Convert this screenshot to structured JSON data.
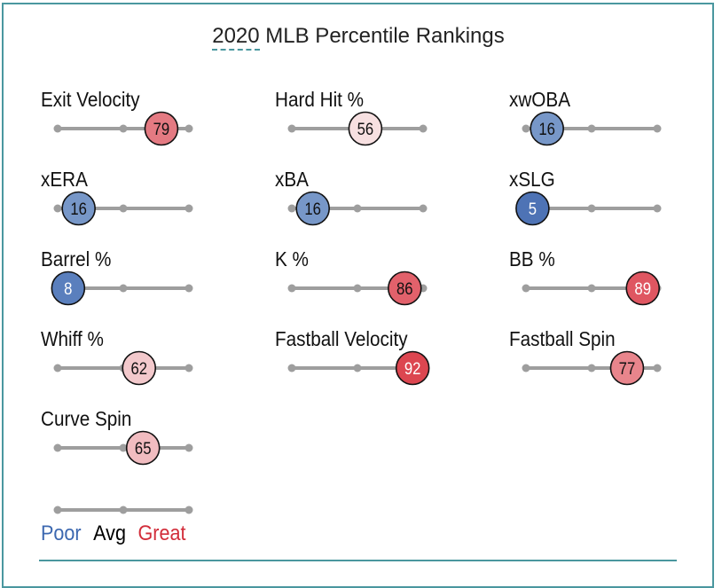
{
  "title_year": "2020",
  "title_rest": " MLB Percentile Rankings",
  "legend": {
    "poor": "Poor",
    "avg": "Avg",
    "great": "Great",
    "poor_color": "#3c68b0",
    "avg_color": "#000000",
    "great_color": "#d22d3a"
  },
  "colors": {
    "track": "#9e9e9e",
    "frame": "#4a979f"
  },
  "chart_data": {
    "type": "percentile-slider",
    "title": "2020 MLB Percentile Rankings",
    "scale": {
      "min": 0,
      "max": 100,
      "ticks": [
        0,
        50,
        100
      ],
      "tick_labels": [
        "Poor",
        "Avg",
        "Great"
      ]
    },
    "metrics": [
      {
        "name": "Exit Velocity",
        "percentile": 79,
        "color": "#e47a82",
        "text_color": "#111"
      },
      {
        "name": "Hard Hit %",
        "percentile": 56,
        "color": "#f7e0e1",
        "text_color": "#111"
      },
      {
        "name": "xwOBA",
        "percentile": 16,
        "color": "#7797c8",
        "text_color": "#111"
      },
      {
        "name": "xERA",
        "percentile": 16,
        "color": "#7797c8",
        "text_color": "#111"
      },
      {
        "name": "xBA",
        "percentile": 16,
        "color": "#7797c8",
        "text_color": "#111"
      },
      {
        "name": "xSLG",
        "percentile": 5,
        "color": "#4e73b5",
        "text_color": "#ffffff"
      },
      {
        "name": "Barrel %",
        "percentile": 8,
        "color": "#5a7fbd",
        "text_color": "#ffffff"
      },
      {
        "name": "K %",
        "percentile": 86,
        "color": "#e2616b",
        "text_color": "#111"
      },
      {
        "name": "BB %",
        "percentile": 89,
        "color": "#df5661",
        "text_color": "#ffffff"
      },
      {
        "name": "Whiff %",
        "percentile": 62,
        "color": "#f3c9cc",
        "text_color": "#111"
      },
      {
        "name": "Fastball Velocity",
        "percentile": 92,
        "color": "#dc4650",
        "text_color": "#ffffff"
      },
      {
        "name": "Fastball Spin",
        "percentile": 77,
        "color": "#e8858c",
        "text_color": "#111"
      },
      {
        "name": "Curve Spin",
        "percentile": 65,
        "color": "#f1bcc0",
        "text_color": "#111"
      }
    ]
  }
}
